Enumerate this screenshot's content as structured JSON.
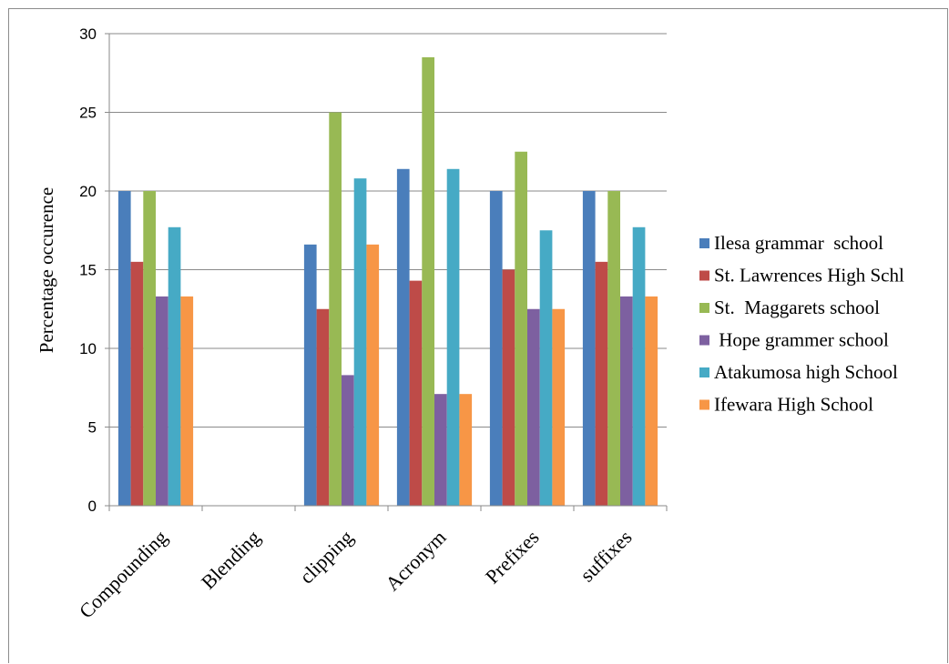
{
  "chart_data": {
    "type": "bar",
    "ylabel": "Percentage    occurence",
    "xlabel": "",
    "ylim": [
      0,
      30
    ],
    "yticks": [
      0,
      5,
      10,
      15,
      20,
      25,
      30
    ],
    "grid": true,
    "legend_position": "right",
    "categories": [
      "Compounding",
      "Blending",
      "clipping",
      "Acronym",
      "Prefixes",
      "suffixes"
    ],
    "series": [
      {
        "name": "Ilesa grammar  school",
        "color": "#4a7ebb",
        "values": [
          20,
          0,
          16.6,
          21.4,
          20,
          20
        ]
      },
      {
        "name": "St. Lawrences High Schl",
        "color": "#be4b48",
        "values": [
          15.5,
          0,
          12.5,
          14.3,
          15,
          15.5
        ]
      },
      {
        "name": "St.  Maggarets school",
        "color": "#98b954",
        "values": [
          20,
          0,
          25,
          28.5,
          22.5,
          20
        ]
      },
      {
        "name": " Hope grammer school",
        "color": "#7d60a0",
        "values": [
          13.3,
          0,
          8.3,
          7.1,
          12.5,
          13.3
        ]
      },
      {
        "name": "Atakumosa high School",
        "color": "#46aac5",
        "values": [
          17.7,
          0,
          20.8,
          21.4,
          17.5,
          17.7
        ]
      },
      {
        "name": "Ifewara High School",
        "color": "#f79646",
        "values": [
          13.3,
          0,
          16.6,
          7.1,
          12.5,
          13.3
        ]
      }
    ]
  }
}
